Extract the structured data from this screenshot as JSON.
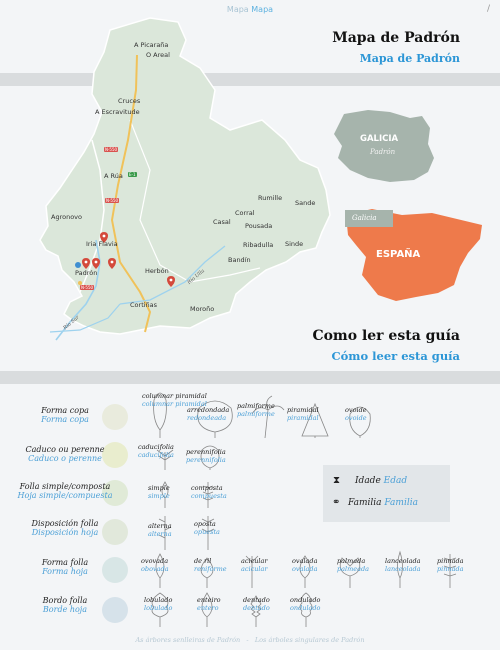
{
  "header": {
    "breadcrumb": "Mapa",
    "breadcrumb_gl": "Mapa",
    "page_number": "/"
  },
  "map_title": {
    "es": "Mapa de Padrón",
    "gl": "Mapa de Padrón"
  },
  "places": [
    {
      "id": "a-picarana",
      "name": "A Picaraña"
    },
    {
      "id": "o-areal",
      "name": "O Areal"
    },
    {
      "id": "cruces",
      "name": "Cruces"
    },
    {
      "id": "a-escravitude",
      "name": "A Escravitude"
    },
    {
      "id": "a-rua",
      "name": "A Rúa"
    },
    {
      "id": "agronovo",
      "name": "Agronovo"
    },
    {
      "id": "iria-flavia",
      "name": "Iria Flavia"
    },
    {
      "id": "padron",
      "name": "Padrón"
    },
    {
      "id": "herbon",
      "name": "Herbón"
    },
    {
      "id": "cortinas",
      "name": "Cortiñas"
    },
    {
      "id": "morono",
      "name": "Moroño"
    },
    {
      "id": "rumille",
      "name": "Rumille"
    },
    {
      "id": "sande",
      "name": "Sande"
    },
    {
      "id": "corral",
      "name": "Corral"
    },
    {
      "id": "casal",
      "name": "Casal"
    },
    {
      "id": "pousada",
      "name": "Pousada"
    },
    {
      "id": "ribadulla",
      "name": "Ribadulla"
    },
    {
      "id": "sinde",
      "name": "Sinde"
    },
    {
      "id": "bandin",
      "name": "Bandín"
    }
  ],
  "roads": {
    "n550a": "N-550",
    "n550b": "N-550",
    "n550c": "N-550",
    "ap9": "E-1"
  },
  "rivers": {
    "sar": "Río Sar",
    "ulla": "Río Ulla"
  },
  "region": {
    "es": "GALICIA",
    "gl": "Padrón"
  },
  "country": {
    "es": "ESPAÑA",
    "gl": "Galicia"
  },
  "guide_title": {
    "es": "Como ler esta guía",
    "gl": "Cómo leer esta guía"
  },
  "rows": [
    {
      "es": "Forma copa",
      "gl": "Forma copa"
    },
    {
      "es": "Caduco ou perenne",
      "gl": "Caduco o perenne"
    },
    {
      "es": "Folla simple/composta",
      "gl": "Hoja simple/compuesta"
    },
    {
      "es": "Disposición folla",
      "gl": "Disposición hoja"
    },
    {
      "es": "Forma folla",
      "gl": "Forma hoja"
    },
    {
      "es": "Bordo folla",
      "gl": "Borde hoja"
    }
  ],
  "crown": [
    {
      "es": "columnar piramidal",
      "gl": "columnar piramidal"
    },
    {
      "es": "arredondada",
      "gl": "redondeada"
    },
    {
      "es": "palmiforme",
      "gl": "palmiforme"
    },
    {
      "es": "piramidal",
      "gl": "piramidal"
    },
    {
      "es": "ovoide",
      "gl": "ovoide"
    }
  ],
  "leaftype": [
    {
      "es": "caducifolia",
      "gl": "caducifolia"
    },
    {
      "es": "perennifolia",
      "gl": "perennifolia"
    }
  ],
  "compound": [
    {
      "es": "simple",
      "gl": "simple"
    },
    {
      "es": "composta",
      "gl": "compuesta"
    }
  ],
  "arrangement": [
    {
      "es": "alterna",
      "gl": "alterna"
    },
    {
      "es": "oposta",
      "gl": "opuesta"
    }
  ],
  "shape": [
    {
      "es": "ovovada",
      "gl": "obovada"
    },
    {
      "es": "de ril",
      "gl": "reniforme"
    },
    {
      "es": "acicular",
      "gl": "acicular"
    },
    {
      "es": "ovalada",
      "gl": "ovalada"
    },
    {
      "es": "palmada",
      "gl": "palmeada"
    },
    {
      "es": "lanceolada",
      "gl": "lanceolada"
    },
    {
      "es": "pinnada",
      "gl": "pinnada"
    }
  ],
  "edge": [
    {
      "es": "lobulado",
      "gl": "lobulado"
    },
    {
      "es": "enteiro",
      "gl": "entero"
    },
    {
      "es": "dentado",
      "gl": "dentado"
    },
    {
      "es": "ondulado",
      "gl": "ondulado"
    }
  ],
  "legend": {
    "age_es": "Idade",
    "age_gl": "Edad",
    "family_es": "Familia",
    "family_gl": "Familia"
  },
  "footer": {
    "es": "As árbores senlleiras de Padrón",
    "gl": "Los árboles singulares de Padrón"
  },
  "colors": {
    "map_fill": "#dbe7da",
    "spain": "#ee7a4b",
    "galicia": "#a6b4ac",
    "accent": "#2c96d6",
    "pin": "#d44a3c",
    "road": "#f0c25a"
  }
}
